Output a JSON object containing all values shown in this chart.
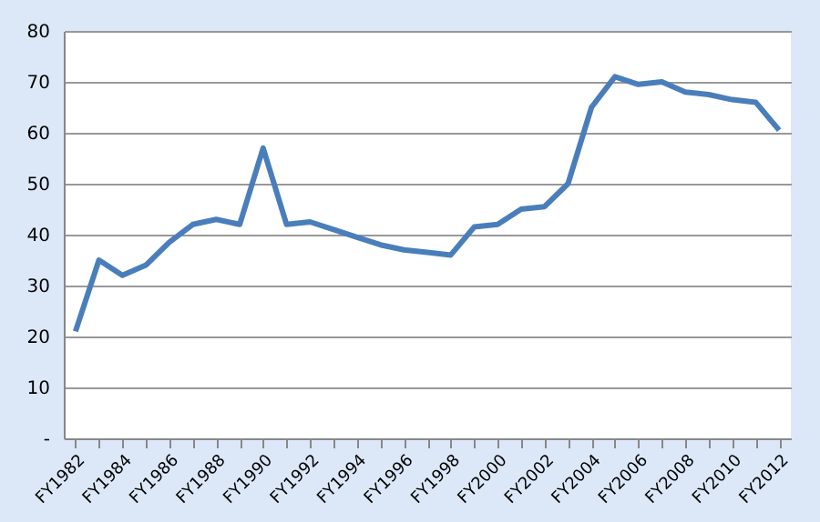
{
  "chart_data": {
    "type": "line",
    "categories": [
      "FY1982",
      null,
      "FY1984",
      null,
      "FY1986",
      null,
      "FY1988",
      null,
      "FY1990",
      null,
      "FY1992",
      null,
      "FY1994",
      null,
      "FY1996",
      null,
      "FY1998",
      null,
      "FY2000",
      null,
      "FY2002",
      null,
      "FY2004",
      null,
      "FY2006",
      null,
      "FY2008",
      null,
      "FY2010",
      null,
      "FY2012"
    ],
    "series": [
      {
        "color": "#4a7ebb",
        "values": [
          21,
          35,
          32,
          34,
          38.5,
          42,
          43,
          42,
          57,
          42,
          42.5,
          41,
          39.5,
          38,
          37,
          36.5,
          36,
          41.5,
          42,
          45,
          45.5,
          50,
          65,
          71,
          69.5,
          70,
          68,
          67.5,
          66.5,
          66,
          60.5
        ]
      }
    ],
    "ylim": [
      0,
      80
    ],
    "yticks": [
      {
        "value": 0,
        "label": "-"
      },
      10,
      20,
      30,
      40,
      50,
      60,
      70,
      80
    ],
    "grid": "y",
    "marker": "none",
    "line_style": "solid"
  }
}
